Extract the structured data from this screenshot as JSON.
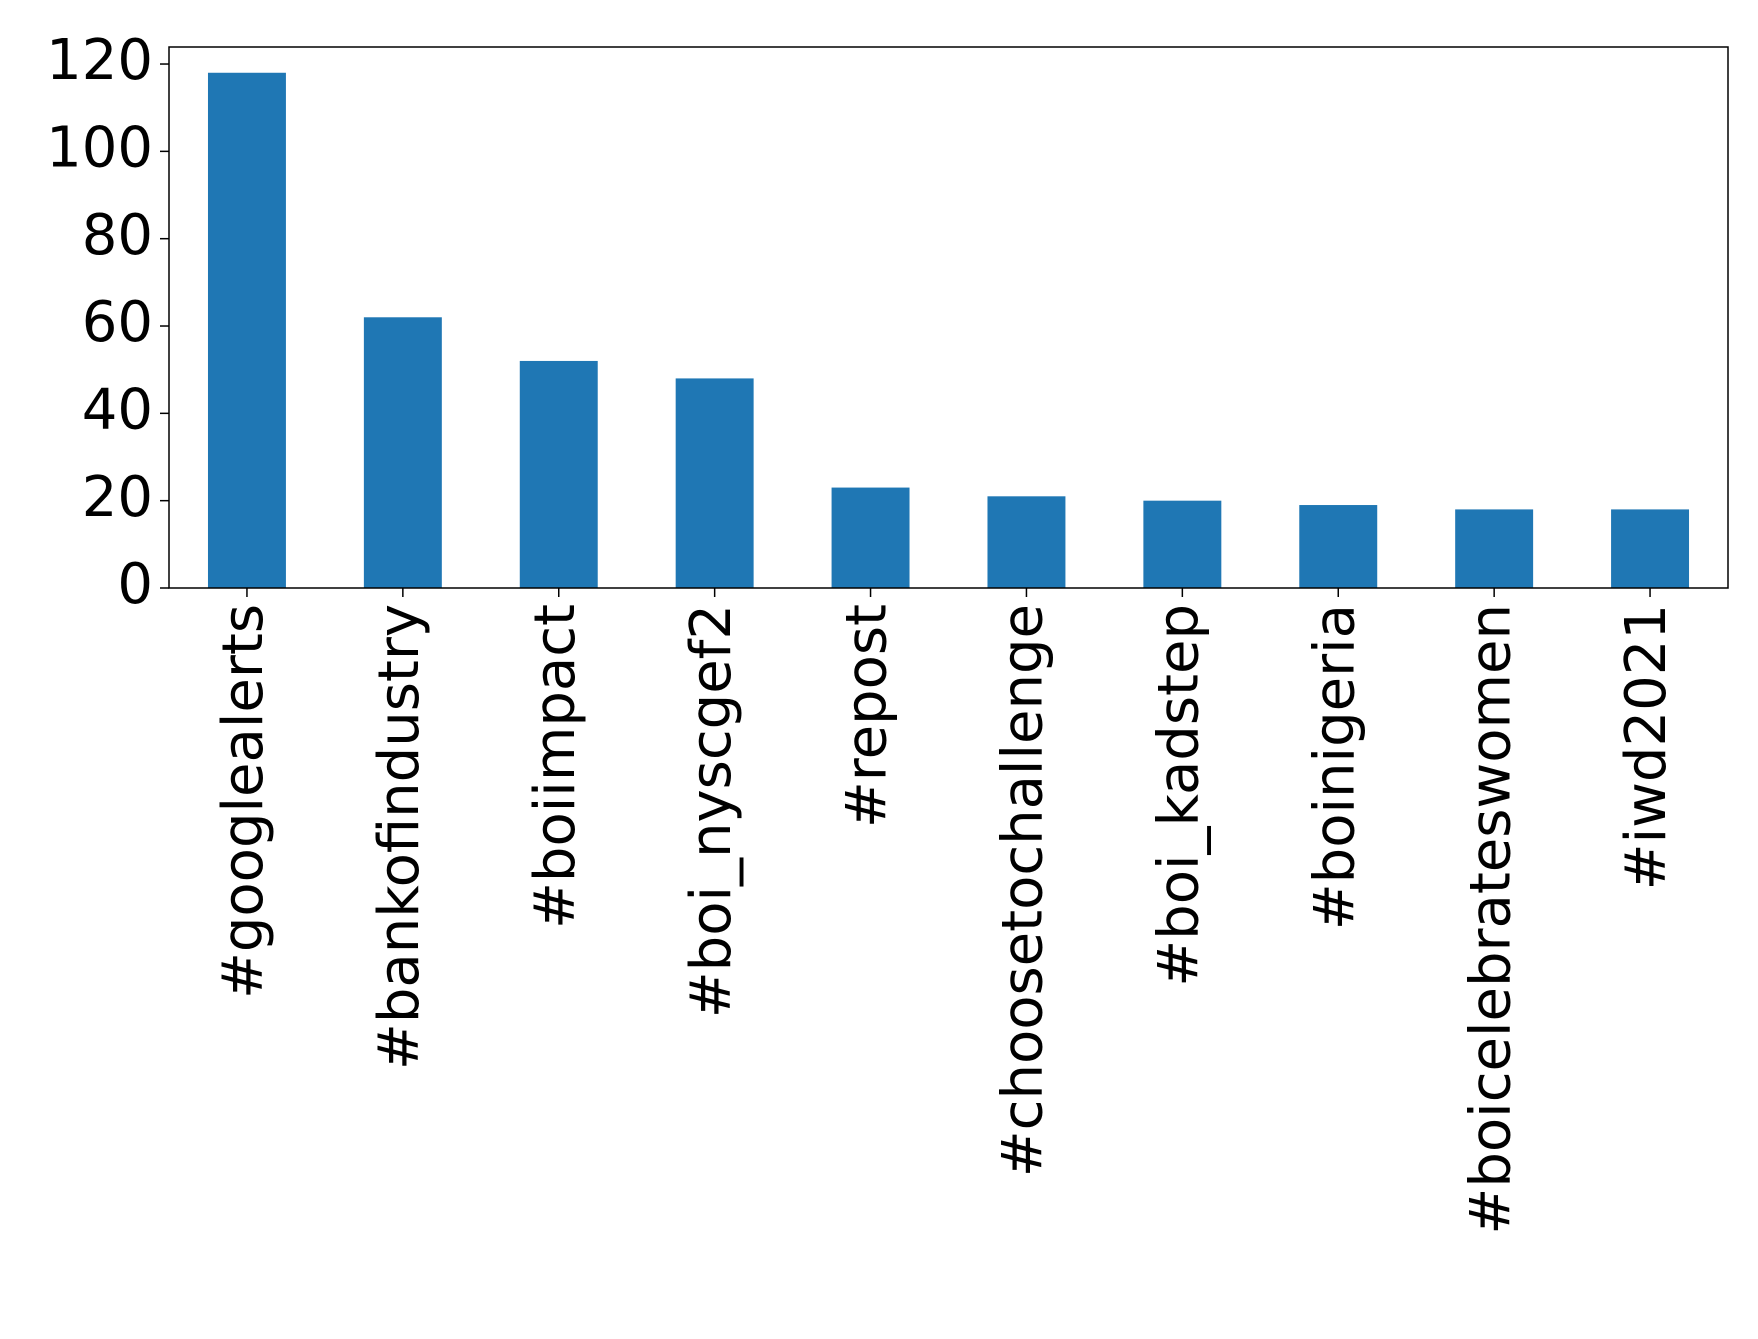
{
  "chart_data": {
    "type": "bar",
    "categories": [
      "#googlealerts",
      "#bankofindustry",
      "#boiimpact",
      "#boi_nyscgef2",
      "#repost",
      "#choosetochallenge",
      "#boi_kadstep",
      "#boinigeria",
      "#boicelebrateswomen",
      "#iwd2021"
    ],
    "values": [
      118,
      62,
      52,
      48,
      23,
      21,
      20,
      19,
      18,
      18
    ],
    "color": "#1f77b4",
    "ylim": [
      0,
      123.9
    ],
    "yticks": [
      0,
      20,
      40,
      60,
      80,
      100,
      120
    ],
    "grid": false
  }
}
